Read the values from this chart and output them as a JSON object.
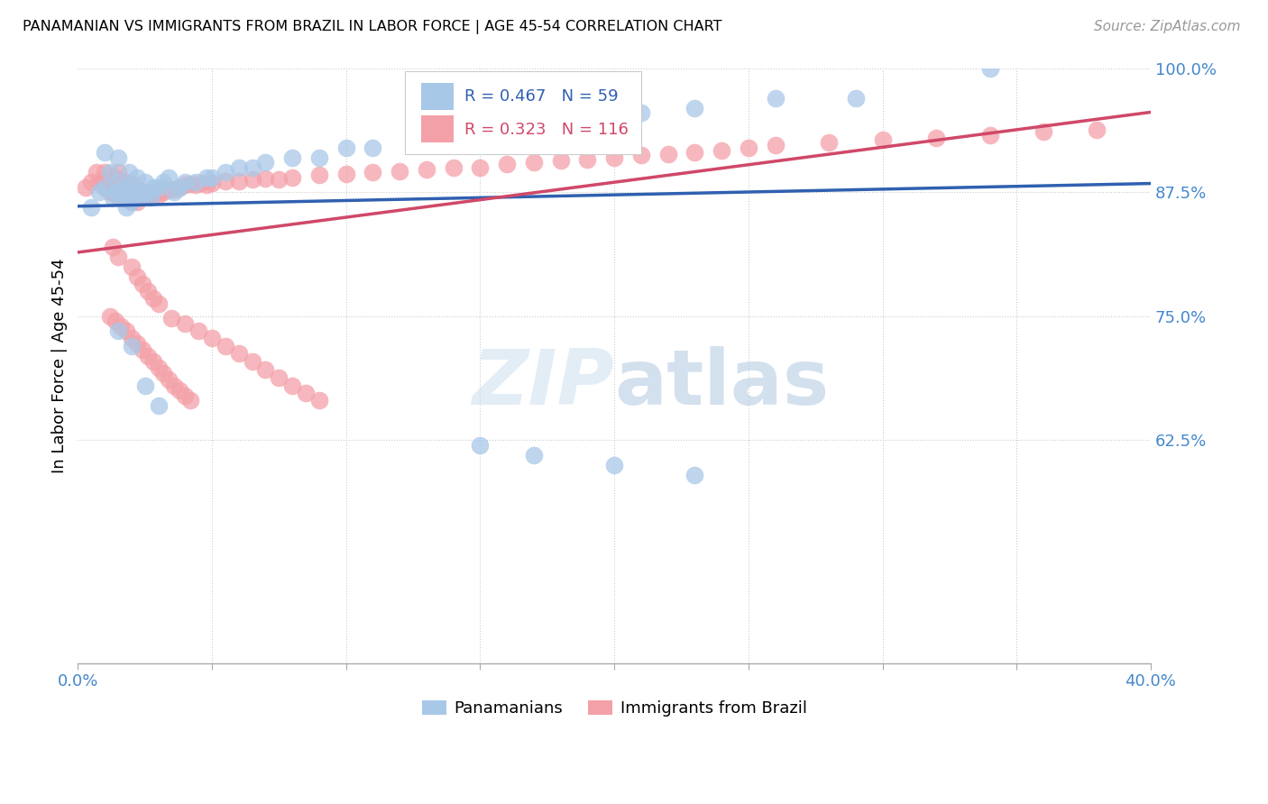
{
  "title": "PANAMANIAN VS IMMIGRANTS FROM BRAZIL IN LABOR FORCE | AGE 45-54 CORRELATION CHART",
  "source": "Source: ZipAtlas.com",
  "ylabel": "In Labor Force | Age 45-54",
  "xlim": [
    0.0,
    0.4
  ],
  "ylim": [
    0.4,
    1.0
  ],
  "blue_color": "#a8c8e8",
  "pink_color": "#f4a0a8",
  "blue_line_color": "#3060b0",
  "pink_line_color": "#d04868",
  "legend_R_blue": "R = 0.467",
  "legend_N_blue": "N = 59",
  "legend_R_pink": "R = 0.323",
  "legend_N_pink": "N = 116",
  "blue_x": [
    0.005,
    0.008,
    0.01,
    0.01,
    0.012,
    0.013,
    0.014,
    0.015,
    0.015,
    0.016,
    0.017,
    0.018,
    0.018,
    0.019,
    0.02,
    0.02,
    0.021,
    0.022,
    0.022,
    0.023,
    0.024,
    0.025,
    0.026,
    0.027,
    0.028,
    0.03,
    0.032,
    0.034,
    0.036,
    0.038,
    0.04,
    0.044,
    0.048,
    0.05,
    0.055,
    0.06,
    0.065,
    0.07,
    0.08,
    0.09,
    0.1,
    0.11,
    0.13,
    0.15,
    0.17,
    0.19,
    0.21,
    0.23,
    0.26,
    0.29,
    0.015,
    0.02,
    0.025,
    0.03,
    0.15,
    0.17,
    0.2,
    0.23,
    0.34
  ],
  "blue_y": [
    0.86,
    0.875,
    0.88,
    0.915,
    0.895,
    0.87,
    0.875,
    0.885,
    0.91,
    0.87,
    0.88,
    0.86,
    0.875,
    0.895,
    0.865,
    0.88,
    0.87,
    0.875,
    0.89,
    0.87,
    0.875,
    0.885,
    0.875,
    0.87,
    0.88,
    0.88,
    0.885,
    0.89,
    0.875,
    0.88,
    0.885,
    0.885,
    0.89,
    0.89,
    0.895,
    0.9,
    0.9,
    0.905,
    0.91,
    0.91,
    0.92,
    0.92,
    0.93,
    0.935,
    0.94,
    0.95,
    0.955,
    0.96,
    0.97,
    0.97,
    0.735,
    0.72,
    0.68,
    0.66,
    0.62,
    0.61,
    0.6,
    0.59,
    1.0
  ],
  "pink_x": [
    0.003,
    0.005,
    0.007,
    0.008,
    0.009,
    0.01,
    0.01,
    0.011,
    0.012,
    0.012,
    0.013,
    0.013,
    0.014,
    0.014,
    0.015,
    0.015,
    0.015,
    0.016,
    0.016,
    0.017,
    0.017,
    0.018,
    0.018,
    0.019,
    0.019,
    0.02,
    0.02,
    0.021,
    0.021,
    0.022,
    0.022,
    0.023,
    0.024,
    0.025,
    0.026,
    0.027,
    0.028,
    0.029,
    0.03,
    0.031,
    0.032,
    0.034,
    0.036,
    0.038,
    0.04,
    0.042,
    0.044,
    0.046,
    0.048,
    0.05,
    0.055,
    0.06,
    0.065,
    0.07,
    0.075,
    0.08,
    0.09,
    0.1,
    0.11,
    0.12,
    0.13,
    0.14,
    0.15,
    0.16,
    0.17,
    0.18,
    0.19,
    0.2,
    0.21,
    0.22,
    0.23,
    0.24,
    0.25,
    0.26,
    0.28,
    0.3,
    0.32,
    0.34,
    0.36,
    0.38,
    0.013,
    0.015,
    0.02,
    0.022,
    0.024,
    0.026,
    0.028,
    0.03,
    0.035,
    0.04,
    0.045,
    0.05,
    0.055,
    0.06,
    0.065,
    0.07,
    0.075,
    0.08,
    0.085,
    0.09,
    0.012,
    0.014,
    0.016,
    0.018,
    0.02,
    0.022,
    0.024,
    0.026,
    0.028,
    0.03,
    0.032,
    0.034,
    0.036,
    0.038,
    0.04,
    0.042
  ],
  "pink_y": [
    0.88,
    0.885,
    0.895,
    0.885,
    0.885,
    0.88,
    0.895,
    0.88,
    0.875,
    0.89,
    0.875,
    0.885,
    0.875,
    0.89,
    0.87,
    0.88,
    0.895,
    0.87,
    0.885,
    0.87,
    0.88,
    0.87,
    0.885,
    0.87,
    0.883,
    0.865,
    0.88,
    0.87,
    0.882,
    0.865,
    0.878,
    0.87,
    0.872,
    0.875,
    0.872,
    0.874,
    0.872,
    0.876,
    0.872,
    0.876,
    0.875,
    0.878,
    0.878,
    0.88,
    0.882,
    0.883,
    0.882,
    0.884,
    0.882,
    0.884,
    0.886,
    0.886,
    0.888,
    0.889,
    0.888,
    0.89,
    0.892,
    0.893,
    0.895,
    0.896,
    0.898,
    0.9,
    0.9,
    0.903,
    0.905,
    0.907,
    0.908,
    0.91,
    0.912,
    0.913,
    0.915,
    0.917,
    0.92,
    0.922,
    0.925,
    0.928,
    0.93,
    0.932,
    0.936,
    0.938,
    0.82,
    0.81,
    0.8,
    0.79,
    0.782,
    0.775,
    0.768,
    0.762,
    0.748,
    0.742,
    0.735,
    0.728,
    0.72,
    0.712,
    0.704,
    0.696,
    0.688,
    0.68,
    0.672,
    0.665,
    0.75,
    0.745,
    0.74,
    0.735,
    0.728,
    0.722,
    0.716,
    0.71,
    0.704,
    0.698,
    0.692,
    0.686,
    0.68,
    0.675,
    0.67,
    0.665
  ]
}
